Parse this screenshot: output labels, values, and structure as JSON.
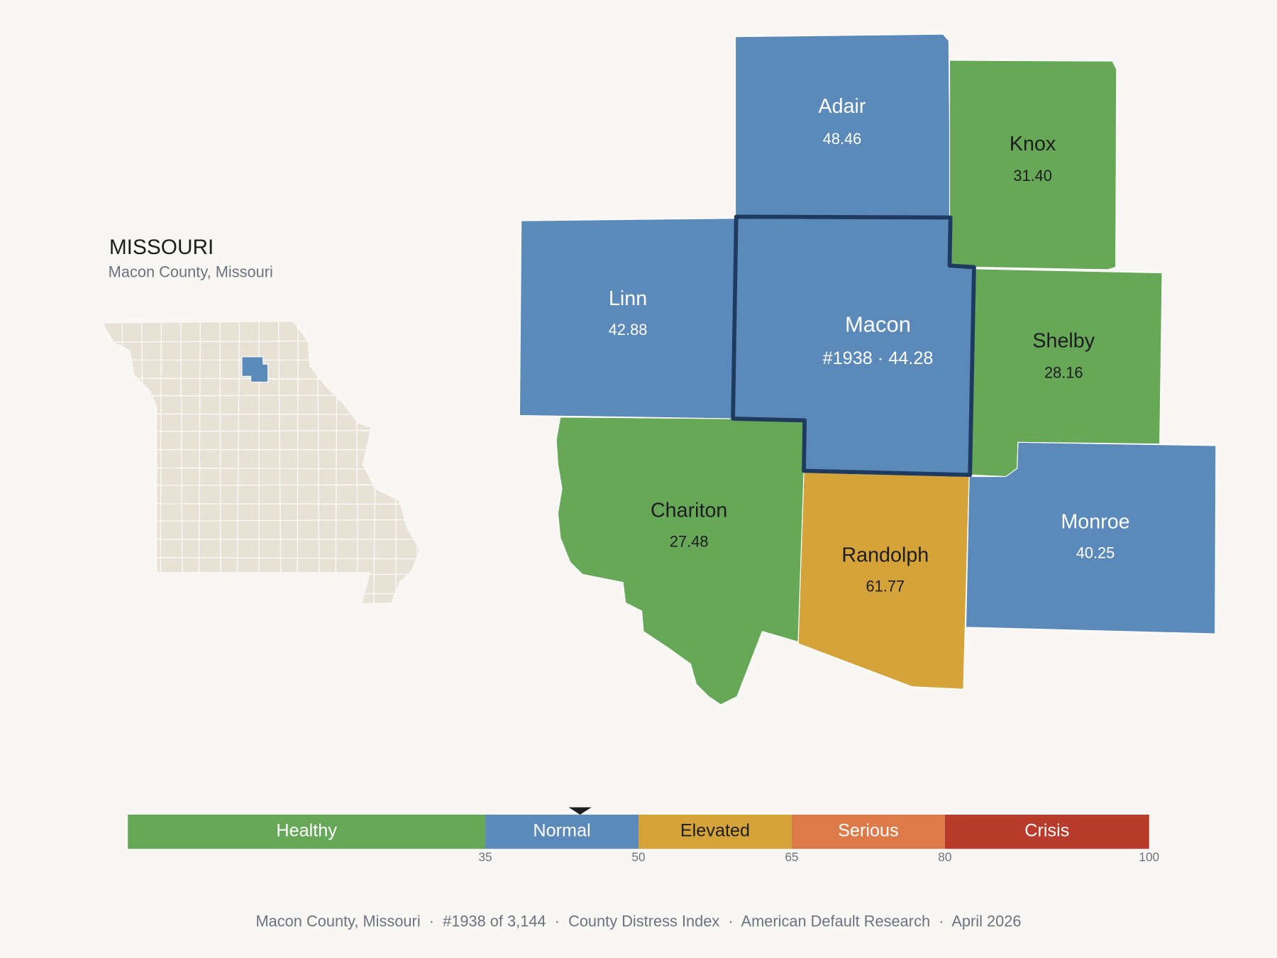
{
  "header": {
    "title": "MISSOURI",
    "subtitle": "Macon County, Missouri"
  },
  "counties": [
    {
      "name": "Adair",
      "label": "48.46"
    },
    {
      "name": "Knox",
      "label": "31.40"
    },
    {
      "name": "Linn",
      "label": "42.88"
    },
    {
      "name": "Macon",
      "label": "#1938 · 44.28"
    },
    {
      "name": "Shelby",
      "label": "28.16"
    },
    {
      "name": "Chariton",
      "label": "27.48"
    },
    {
      "name": "Randolph",
      "label": "61.77"
    },
    {
      "name": "Monroe",
      "label": "40.25"
    }
  ],
  "scale": {
    "range": [
      0,
      100
    ],
    "ticks": [
      35,
      50,
      65,
      80,
      100
    ],
    "bands": [
      {
        "label": "Healthy",
        "color": "#66a758"
      },
      {
        "label": "Normal",
        "color": "#5b89b9"
      },
      {
        "label": "Elevated",
        "color": "#d4a43a"
      },
      {
        "label": "Serious",
        "color": "#dc7a4a"
      },
      {
        "label": "Crisis",
        "color": "#b93b2b"
      }
    ],
    "marker": 44.28
  },
  "footer": "Macon County, Missouri  ·  #1938 of 3,144  ·  County Distress Index  ·  American Default Research  ·  April 2026"
}
